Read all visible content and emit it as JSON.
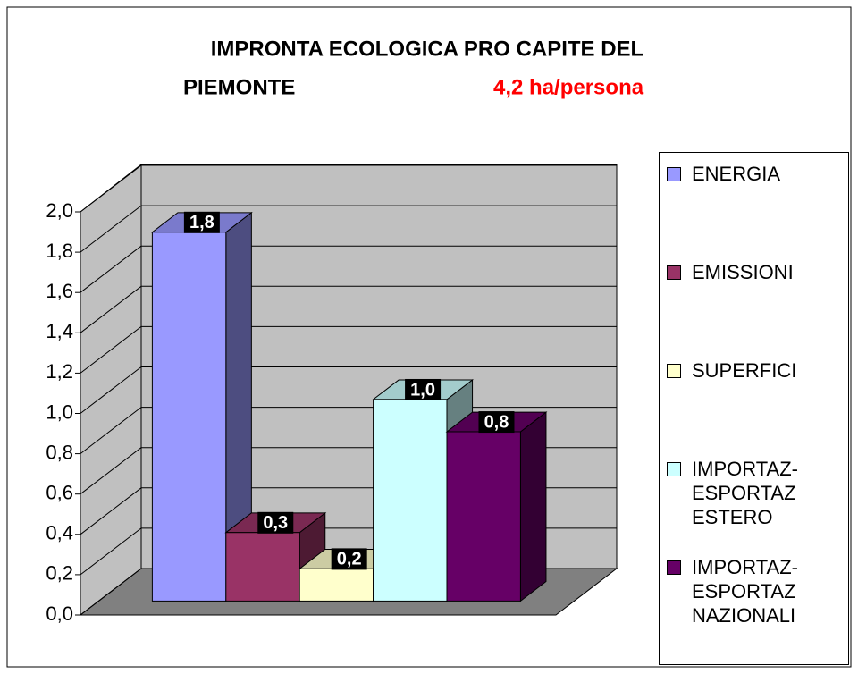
{
  "chart_data": {
    "type": "bar",
    "title": [
      "IMPRONTA ECOLOGICA PRO CAPITE DEL",
      "PIEMONTE"
    ],
    "subtitle": "4,2 ha/persona",
    "series": [
      {
        "name": "ENERGIA",
        "color": "#9999ff",
        "values": [
          1.83
        ],
        "value_labels": [
          "1,8"
        ]
      },
      {
        "name": "EMISSIONI",
        "color": "#993366",
        "values": [
          0.34
        ],
        "value_labels": [
          "0,3"
        ]
      },
      {
        "name": "SUPERFICI",
        "color": "#ffffcc",
        "values": [
          0.16
        ],
        "value_labels": [
          "0,2"
        ]
      },
      {
        "name": "IMPORTAZ- ESPORTAZ ESTERO",
        "color": "#ccffff",
        "values": [
          1.0
        ],
        "value_labels": [
          "1,0"
        ]
      },
      {
        "name": "IMPORTAZ- ESPORTAZ NAZIONALI",
        "color": "#660066",
        "values": [
          0.84
        ],
        "value_labels": [
          "0,8"
        ]
      }
    ],
    "ylim": [
      0,
      2
    ],
    "yticks": [
      {
        "value": 0,
        "label": "0,0"
      },
      {
        "value": 0.2,
        "label": "0,2"
      },
      {
        "value": 0.4,
        "label": "0,4"
      },
      {
        "value": 0.6,
        "label": "0,6"
      },
      {
        "value": 0.8,
        "label": "0,8"
      },
      {
        "value": 1.0,
        "label": "1,0"
      },
      {
        "value": 1.2,
        "label": "1,2"
      },
      {
        "value": 1.4,
        "label": "1,4"
      },
      {
        "value": 1.6,
        "label": "1,6"
      },
      {
        "value": 1.8,
        "label": "1,8"
      },
      {
        "value": 2.0,
        "label": "2,0"
      }
    ],
    "grid": true,
    "legend": "right"
  }
}
